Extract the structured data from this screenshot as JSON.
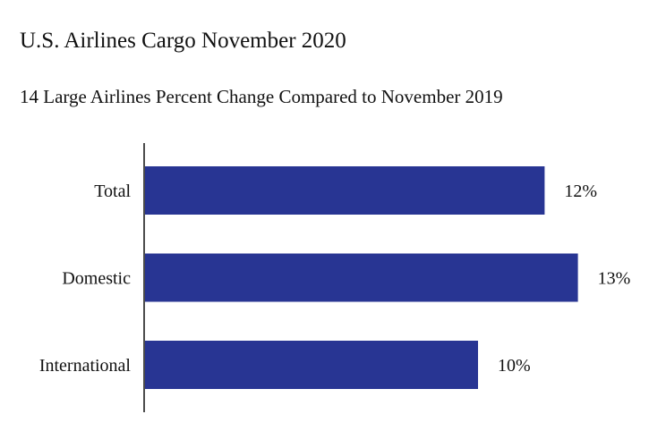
{
  "title": "U.S. Airlines Cargo November 2020",
  "subtitle": "14 Large Airlines Percent Change Compared to November 2019",
  "colors": {
    "bar": "#283593",
    "axis": "#111111",
    "text": "#111111"
  },
  "chart_data": {
    "type": "bar",
    "orientation": "horizontal",
    "title": "U.S. Airlines Cargo November 2020",
    "subtitle": "14 Large Airlines Percent Change Compared to November 2019",
    "categories": [
      "Total",
      "Domestic",
      "International"
    ],
    "values": [
      12,
      13,
      10
    ],
    "value_labels": [
      "12%",
      "13%",
      "10%"
    ],
    "unit": "%",
    "xlim": [
      0,
      14
    ],
    "grid": false,
    "legend": "none"
  }
}
